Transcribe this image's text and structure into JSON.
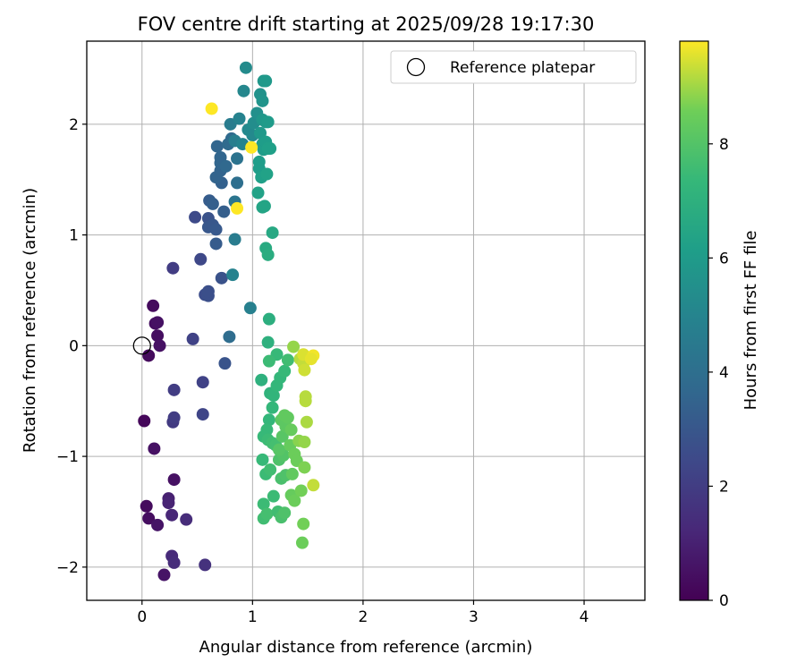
{
  "chart_data": {
    "type": "scatter",
    "title": "FOV centre drift starting at 2025/09/28 19:17:30",
    "xlabel": "Angular distance from reference (arcmin)",
    "ylabel": "Rotation from reference (arcmin)",
    "xlim": [
      -0.5,
      4.55
    ],
    "ylim": [
      -2.3,
      2.75
    ],
    "xticks": [
      0,
      1,
      2,
      3,
      4
    ],
    "yticks": [
      -2,
      -1,
      0,
      1,
      2
    ],
    "grid": true,
    "legend": {
      "placement": "top-right",
      "entries": [
        "Reference platepar"
      ]
    },
    "colormap": "viridis",
    "colorbar": {
      "label": "Hours from first FF file",
      "range": [
        0,
        9.8
      ],
      "ticks": [
        0,
        2,
        4,
        6,
        8
      ]
    },
    "reference_point": {
      "x": 0,
      "y": 0,
      "label": "Reference platepar"
    },
    "series": [
      {
        "points": [
          [
            0.1,
            0.36,
            0.3
          ],
          [
            0.12,
            0.2,
            0.4
          ],
          [
            0.14,
            0.21,
            0.5
          ],
          [
            0.14,
            0.09,
            0.4
          ],
          [
            0.16,
            0.0,
            0.5
          ],
          [
            0.06,
            -0.09,
            0.3
          ],
          [
            0.02,
            -0.68,
            0.2
          ],
          [
            0.11,
            -0.93,
            0.5
          ],
          [
            0.29,
            -1.21,
            0.5
          ],
          [
            0.04,
            -1.45,
            0.3
          ],
          [
            0.06,
            -1.56,
            0.4
          ],
          [
            0.14,
            -1.62,
            0.6
          ],
          [
            0.24,
            -1.38,
            1.0
          ],
          [
            0.24,
            -1.42,
            1.1
          ],
          [
            0.27,
            -1.53,
            1.2
          ],
          [
            0.4,
            -1.57,
            1.4
          ],
          [
            0.27,
            -1.9,
            1.3
          ],
          [
            0.29,
            -1.96,
            1.4
          ],
          [
            0.2,
            -2.07,
            0.6
          ],
          [
            0.57,
            -1.98,
            1.6
          ],
          [
            0.28,
            -0.69,
            1.9
          ],
          [
            0.29,
            -0.65,
            2.0
          ],
          [
            0.29,
            -0.4,
            2.0
          ],
          [
            0.46,
            0.06,
            2.2
          ],
          [
            0.55,
            -0.33,
            2.2
          ],
          [
            0.55,
            -0.62,
            2.3
          ],
          [
            0.28,
            0.7,
            2.0
          ],
          [
            0.53,
            0.78,
            2.4
          ],
          [
            0.57,
            0.46,
            2.6
          ],
          [
            0.6,
            0.45,
            2.7
          ],
          [
            0.6,
            0.49,
            2.7
          ],
          [
            0.72,
            0.61,
            2.8
          ],
          [
            0.48,
            1.16,
            2.5
          ],
          [
            0.6,
            1.15,
            2.8
          ],
          [
            0.6,
            1.07,
            3.0
          ],
          [
            0.64,
            1.09,
            3.0
          ],
          [
            0.67,
            1.05,
            3.1
          ],
          [
            0.67,
            0.92,
            3.2
          ],
          [
            0.74,
            1.21,
            3.3
          ],
          [
            0.75,
            -0.16,
            2.9
          ],
          [
            0.79,
            0.08,
            3.9
          ],
          [
            0.61,
            1.31,
            3.2
          ],
          [
            0.64,
            1.28,
            3.3
          ],
          [
            0.72,
            1.47,
            3.4
          ],
          [
            0.67,
            1.52,
            3.5
          ],
          [
            0.71,
            1.58,
            3.5
          ],
          [
            0.71,
            1.65,
            3.6
          ],
          [
            0.71,
            1.7,
            3.6
          ],
          [
            0.68,
            1.8,
            3.6
          ],
          [
            0.76,
            1.62,
            3.7
          ],
          [
            0.78,
            1.82,
            3.8
          ],
          [
            0.81,
            1.87,
            3.8
          ],
          [
            0.86,
            1.47,
            4.0
          ],
          [
            0.86,
            1.69,
            4.2
          ],
          [
            0.84,
            1.3,
            4.3
          ],
          [
            0.84,
            0.96,
            4.6
          ],
          [
            0.82,
            0.64,
            4.9
          ],
          [
            0.98,
            0.34,
            4.8
          ],
          [
            0.8,
            2.0,
            4.6
          ],
          [
            0.84,
            1.85,
            4.7
          ],
          [
            0.88,
            2.05,
            4.9
          ],
          [
            0.91,
            1.82,
            5.0
          ],
          [
            0.92,
            2.3,
            5.1
          ],
          [
            0.94,
            2.51,
            5.3
          ],
          [
            0.96,
            1.95,
            5.2
          ],
          [
            1.0,
            1.9,
            5.2
          ],
          [
            1.01,
            2.01,
            5.4
          ],
          [
            1.04,
            2.1,
            5.5
          ],
          [
            1.07,
            2.27,
            5.6
          ],
          [
            1.09,
            2.21,
            5.7
          ],
          [
            1.1,
            2.39,
            5.8
          ],
          [
            1.12,
            2.39,
            5.9
          ],
          [
            1.09,
            2.04,
            5.8
          ],
          [
            1.12,
            2.02,
            5.9
          ],
          [
            1.14,
            2.02,
            6.0
          ],
          [
            1.07,
            1.92,
            5.9
          ],
          [
            1.09,
            1.82,
            6.0
          ],
          [
            1.1,
            1.77,
            6.1
          ],
          [
            1.12,
            1.84,
            6.1
          ],
          [
            1.14,
            1.78,
            6.2
          ],
          [
            1.16,
            1.78,
            6.2
          ],
          [
            1.06,
            1.66,
            6.1
          ],
          [
            1.06,
            1.6,
            6.1
          ],
          [
            1.08,
            1.52,
            6.2
          ],
          [
            1.13,
            1.55,
            6.3
          ],
          [
            1.05,
            1.38,
            6.3
          ],
          [
            1.09,
            1.25,
            6.4
          ],
          [
            1.11,
            1.26,
            6.4
          ],
          [
            1.18,
            1.02,
            6.6
          ],
          [
            1.12,
            0.88,
            6.7
          ],
          [
            1.14,
            0.82,
            6.8
          ],
          [
            1.15,
            0.24,
            6.9
          ],
          [
            1.14,
            0.03,
            7.0
          ],
          [
            1.08,
            -0.31,
            7.0
          ],
          [
            1.16,
            -0.43,
            7.1
          ],
          [
            1.19,
            -0.45,
            7.2
          ],
          [
            1.22,
            -0.36,
            7.3
          ],
          [
            1.25,
            -0.29,
            7.3
          ],
          [
            1.29,
            -0.23,
            7.4
          ],
          [
            1.22,
            -0.08,
            7.4
          ],
          [
            1.15,
            -0.14,
            7.5
          ],
          [
            1.32,
            -0.13,
            7.6
          ],
          [
            1.18,
            -0.56,
            7.3
          ],
          [
            1.15,
            -0.67,
            7.3
          ],
          [
            1.13,
            -0.76,
            7.4
          ],
          [
            1.1,
            -0.82,
            7.4
          ],
          [
            1.14,
            -0.85,
            7.5
          ],
          [
            1.18,
            -0.88,
            7.6
          ],
          [
            1.21,
            -0.9,
            7.7
          ],
          [
            1.09,
            -1.03,
            7.4
          ],
          [
            1.12,
            -1.16,
            7.5
          ],
          [
            1.16,
            -1.12,
            7.6
          ],
          [
            1.1,
            -1.43,
            7.5
          ],
          [
            1.1,
            -1.56,
            7.6
          ],
          [
            1.13,
            -1.52,
            7.7
          ],
          [
            1.19,
            -1.36,
            7.5
          ],
          [
            1.23,
            -1.5,
            7.6
          ],
          [
            1.26,
            -1.55,
            7.8
          ],
          [
            1.29,
            -1.51,
            7.9
          ],
          [
            1.26,
            -1.2,
            7.8
          ],
          [
            1.3,
            -1.17,
            7.9
          ],
          [
            1.24,
            -1.03,
            7.9
          ],
          [
            1.28,
            -0.99,
            8.0
          ],
          [
            1.24,
            -0.94,
            8.1
          ],
          [
            1.27,
            -0.82,
            8.1
          ],
          [
            1.3,
            -0.73,
            8.2
          ],
          [
            1.26,
            -0.67,
            8.2
          ],
          [
            1.29,
            -0.63,
            8.3
          ],
          [
            1.32,
            -0.65,
            8.3
          ],
          [
            1.35,
            -0.76,
            8.4
          ],
          [
            1.34,
            -0.9,
            8.4
          ],
          [
            1.38,
            -0.98,
            8.5
          ],
          [
            1.4,
            -1.04,
            8.5
          ],
          [
            1.36,
            -1.16,
            8.3
          ],
          [
            1.35,
            -1.35,
            8.4
          ],
          [
            1.38,
            -1.4,
            8.5
          ],
          [
            1.44,
            -1.31,
            8.6
          ],
          [
            1.45,
            -1.78,
            8.5
          ],
          [
            1.46,
            -1.61,
            8.6
          ],
          [
            1.47,
            -1.1,
            8.7
          ],
          [
            1.42,
            -0.86,
            8.8
          ],
          [
            1.47,
            -0.87,
            8.9
          ],
          [
            1.49,
            -0.69,
            9.1
          ],
          [
            1.48,
            -0.5,
            9.2
          ],
          [
            1.48,
            -0.46,
            9.2
          ],
          [
            1.55,
            -1.26,
            9.3
          ],
          [
            1.37,
            -0.01,
            8.9
          ],
          [
            1.43,
            -0.12,
            9.2
          ],
          [
            1.46,
            -0.16,
            9.3
          ],
          [
            1.47,
            -0.22,
            9.4
          ],
          [
            1.46,
            -0.08,
            9.5
          ],
          [
            1.55,
            -0.09,
            9.7
          ],
          [
            1.53,
            -0.12,
            9.6
          ],
          [
            0.63,
            2.14,
            9.8
          ],
          [
            0.99,
            1.79,
            9.8
          ],
          [
            0.86,
            1.24,
            9.8
          ]
        ]
      }
    ]
  }
}
